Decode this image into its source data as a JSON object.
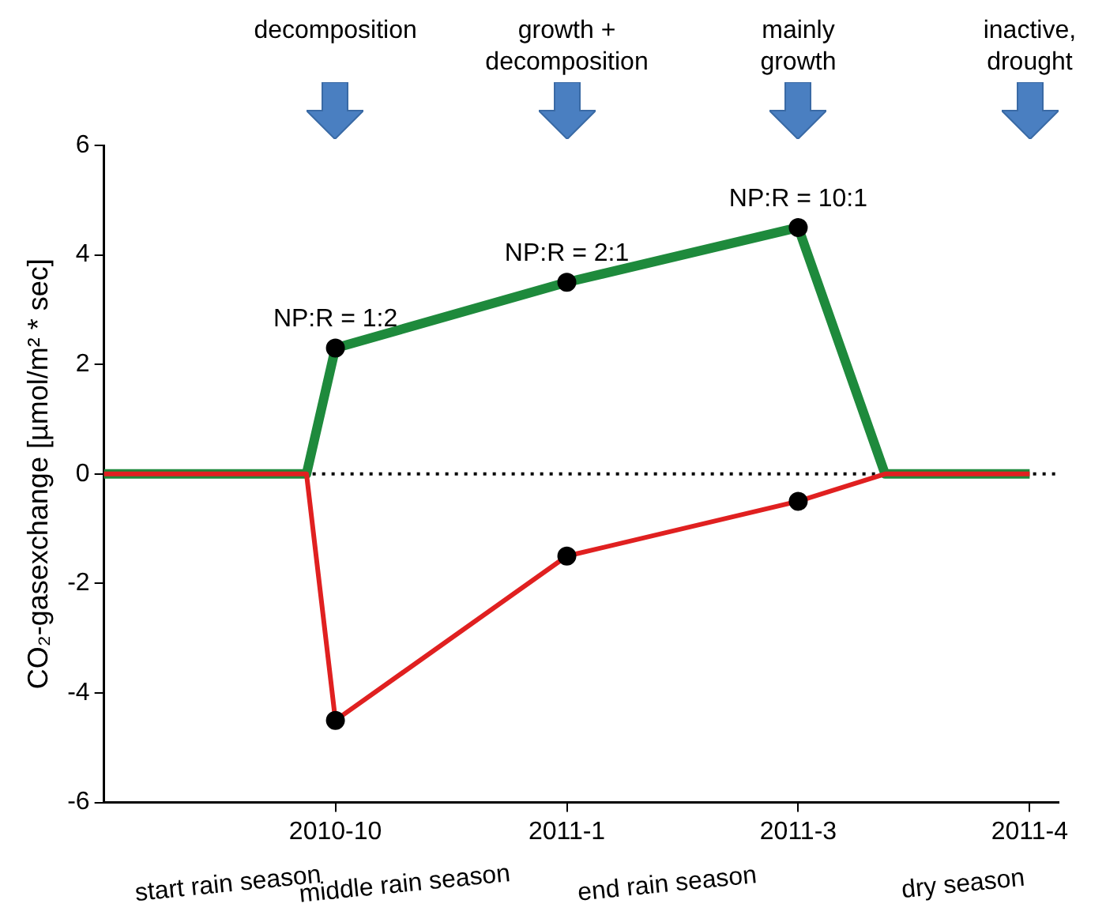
{
  "chart_data": {
    "type": "line",
    "ylabel": "CO₂-gasexchange [µmol/m² * sec]",
    "categories": [
      null,
      null,
      null,
      null,
      null,
      null,
      null,
      null,
      "2010-10",
      null,
      null,
      null,
      null,
      null,
      null,
      null,
      "2011-1",
      null,
      null,
      null,
      null,
      null,
      null,
      null,
      "2011-3",
      null,
      null,
      null,
      null,
      null,
      null,
      null,
      "2011-4",
      null
    ],
    "ylim": [
      -6,
      6
    ],
    "yticks": [
      -6,
      -4,
      -2,
      0,
      2,
      4,
      6
    ],
    "grid": false,
    "legend": false,
    "series": [
      {
        "color": "#1e8a3c",
        "marker": "none",
        "line_style": "solid",
        "values": [
          0,
          0,
          0,
          0,
          0,
          0,
          0,
          0,
          2.3,
          null,
          null,
          null,
          null,
          null,
          null,
          null,
          3.5,
          null,
          null,
          null,
          null,
          null,
          null,
          null,
          4.5,
          null,
          null,
          0,
          0,
          0,
          0,
          0,
          0,
          null
        ]
      },
      {
        "color": "#e02020",
        "marker": "none",
        "line_style": "solid",
        "values": [
          0,
          0,
          0,
          0,
          0,
          0,
          0,
          0,
          -4.5,
          null,
          null,
          null,
          null,
          null,
          null,
          null,
          -1.5,
          null,
          null,
          null,
          null,
          null,
          null,
          null,
          -0.5,
          null,
          null,
          0,
          0,
          0,
          0,
          0,
          0,
          null
        ]
      },
      {
        "type": "scatter",
        "color": "#000000",
        "marker": "circle",
        "values": [
          null,
          null,
          null,
          null,
          null,
          null,
          null,
          null,
          2.3,
          null,
          null,
          null,
          null,
          null,
          null,
          null,
          3.5,
          null,
          null,
          null,
          null,
          null,
          null,
          null,
          4.5,
          null,
          null,
          null,
          null,
          null,
          null,
          null,
          null,
          null
        ]
      },
      {
        "type": "scatter",
        "color": "#000000",
        "marker": "circle",
        "values": [
          null,
          null,
          null,
          null,
          null,
          null,
          null,
          null,
          -4.5,
          null,
          null,
          null,
          null,
          null,
          null,
          null,
          -1.5,
          null,
          null,
          null,
          null,
          null,
          null,
          null,
          -0.5,
          null,
          null,
          null,
          null,
          null,
          null,
          null,
          null,
          null
        ]
      }
    ],
    "ref_lines": [
      {
        "axis": "y",
        "value": 0,
        "color": "#000000",
        "line_style": "dotted"
      }
    ],
    "annotations": [
      {
        "text": "NP:R = 1:2",
        "x": "2010-10",
        "y": 2.3
      },
      {
        "text": "NP:R = 2:1",
        "x": "2011-1",
        "y": 3.5
      },
      {
        "text": "NP:R = 10:1",
        "x": "2011-3",
        "y": 4.5
      },
      "decomposition",
      "growth +\ndecomposition",
      "mainly\ngrowth",
      "inactive,\ndrought",
      "start rain season",
      "middle rain season",
      "end rain season",
      "dry season"
    ]
  }
}
